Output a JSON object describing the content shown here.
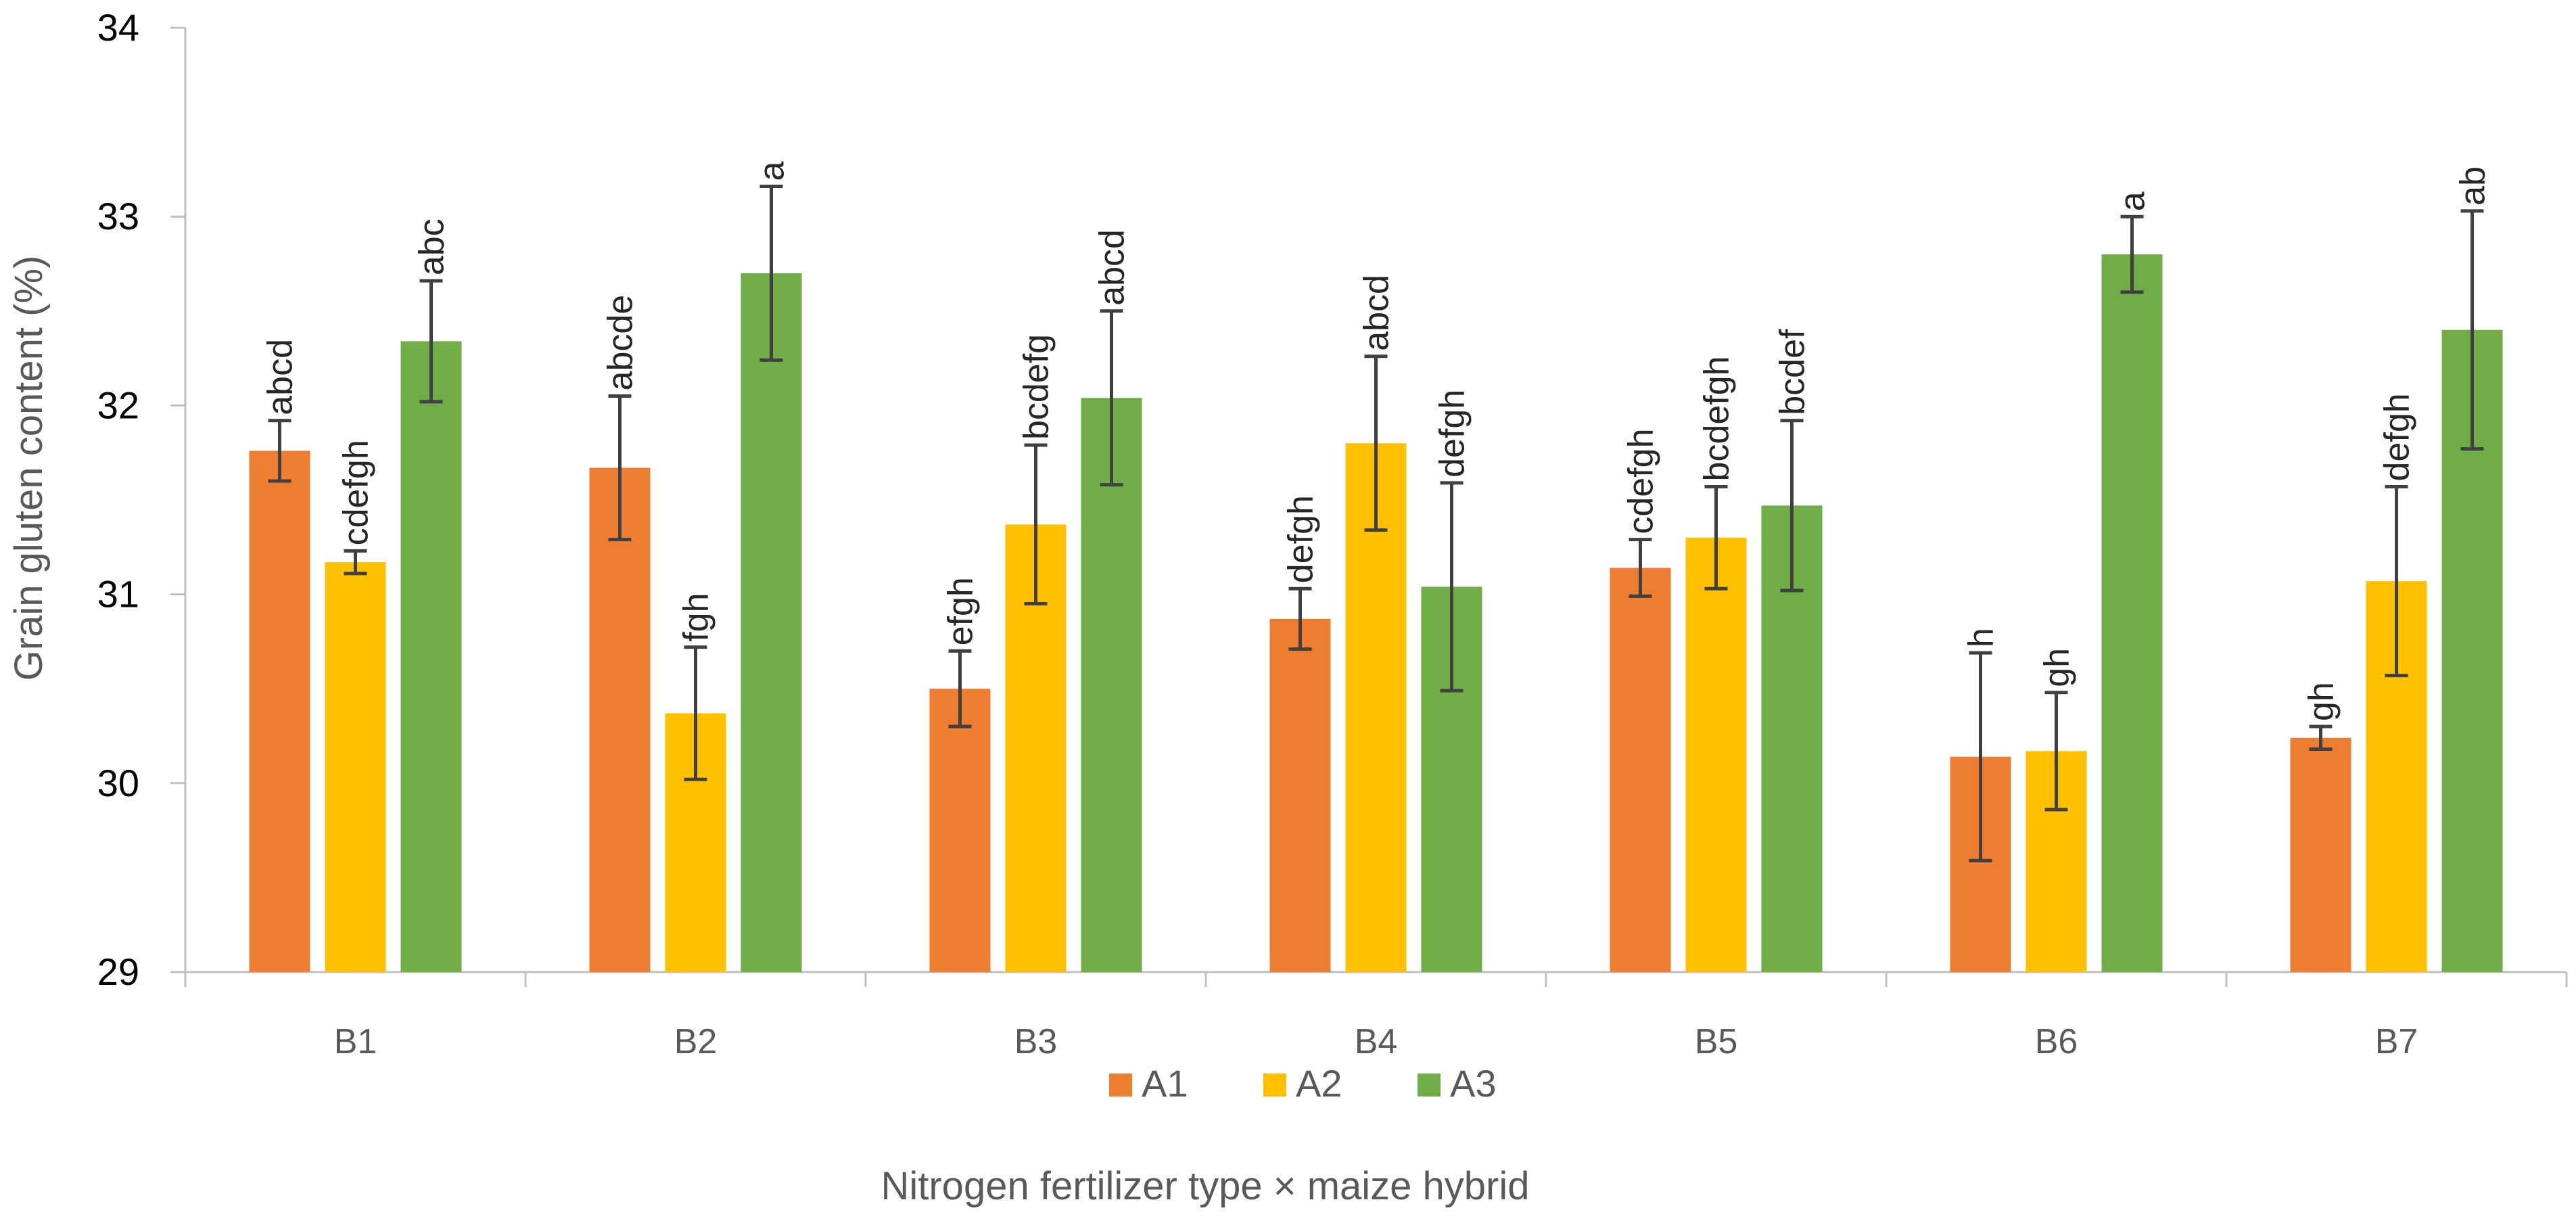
{
  "chart_data": {
    "type": "bar",
    "title": "",
    "xlabel": "Nitrogen fertilizer type × maize hybrid",
    "ylabel": "Grain gluten content (%)",
    "ylim": [
      29,
      34
    ],
    "yticks": [
      "29",
      "30",
      "31",
      "32",
      "33",
      "34"
    ],
    "grid": false,
    "legend_position": "bottom",
    "categories": [
      "B1",
      "B2",
      "B3",
      "B4",
      "B5",
      "B6",
      "B7"
    ],
    "series": [
      {
        "name": "A1",
        "color": "#ED7D31",
        "values": [
          31.76,
          31.67,
          30.5,
          30.87,
          31.14,
          30.14,
          30.24
        ],
        "errors": [
          0.16,
          0.38,
          0.2,
          0.16,
          0.15,
          0.55,
          0.06
        ],
        "labels": [
          "abcd",
          "abcde",
          "efgh",
          "defgh",
          "cdefgh",
          "h",
          "gh"
        ]
      },
      {
        "name": "A2",
        "color": "#FFC000",
        "values": [
          31.17,
          30.37,
          31.37,
          31.8,
          31.3,
          30.17,
          31.07
        ],
        "errors": [
          0.06,
          0.35,
          0.42,
          0.46,
          0.27,
          0.31,
          0.5
        ],
        "labels": [
          "cdefgh",
          "fgh",
          "bcdefg",
          "abcd",
          "bcdefgh",
          "gh",
          "defgh"
        ]
      },
      {
        "name": "A3",
        "color": "#70AD47",
        "values": [
          32.34,
          32.7,
          32.04,
          31.04,
          31.47,
          32.8,
          32.4
        ],
        "errors": [
          0.32,
          0.46,
          0.46,
          0.55,
          0.45,
          0.2,
          0.63
        ],
        "labels": [
          "abc",
          "a",
          "abcd",
          "defgh",
          "bcdef",
          "a",
          "ab"
        ]
      }
    ]
  }
}
